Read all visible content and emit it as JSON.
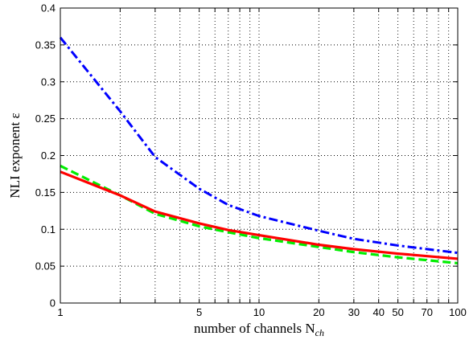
{
  "chart_data": {
    "type": "line",
    "title": "",
    "xlabel": "number of channels N",
    "xlabel_subscript": "ch",
    "ylabel": "NLI exponent ε",
    "xscale": "log",
    "xlim": [
      1,
      100
    ],
    "ylim": [
      0,
      0.4
    ],
    "grid": "dotted",
    "legend": "none",
    "xticks": [
      1,
      5,
      10,
      20,
      30,
      40,
      50,
      70,
      100
    ],
    "xtick_labels": [
      "1",
      "5",
      "10",
      "20",
      "30",
      "40",
      "50",
      "70",
      "100"
    ],
    "yticks": [
      0,
      0.05,
      0.1,
      0.15,
      0.2,
      0.25,
      0.3,
      0.35,
      0.4
    ],
    "ytick_labels": [
      "0",
      "0.05",
      "0.1",
      "0.15",
      "0.2",
      "0.25",
      "0.3",
      "0.35",
      "0.4"
    ],
    "x": [
      1,
      2,
      3,
      5,
      7,
      10,
      20,
      30,
      50,
      100
    ],
    "series": [
      {
        "color": "#0000ff",
        "style": "dash-dot",
        "values": [
          0.36,
          0.26,
          0.198,
          0.155,
          0.133,
          0.118,
          0.098,
          0.087,
          0.078,
          0.068
        ]
      },
      {
        "color": "#00ee00",
        "style": "dashed",
        "values": [
          0.186,
          0.146,
          0.121,
          0.104,
          0.096,
          0.088,
          0.076,
          0.069,
          0.062,
          0.054
        ]
      },
      {
        "color": "#ff0000",
        "style": "solid",
        "values": [
          0.178,
          0.146,
          0.124,
          0.108,
          0.099,
          0.092,
          0.079,
          0.073,
          0.067,
          0.06
        ]
      }
    ]
  }
}
